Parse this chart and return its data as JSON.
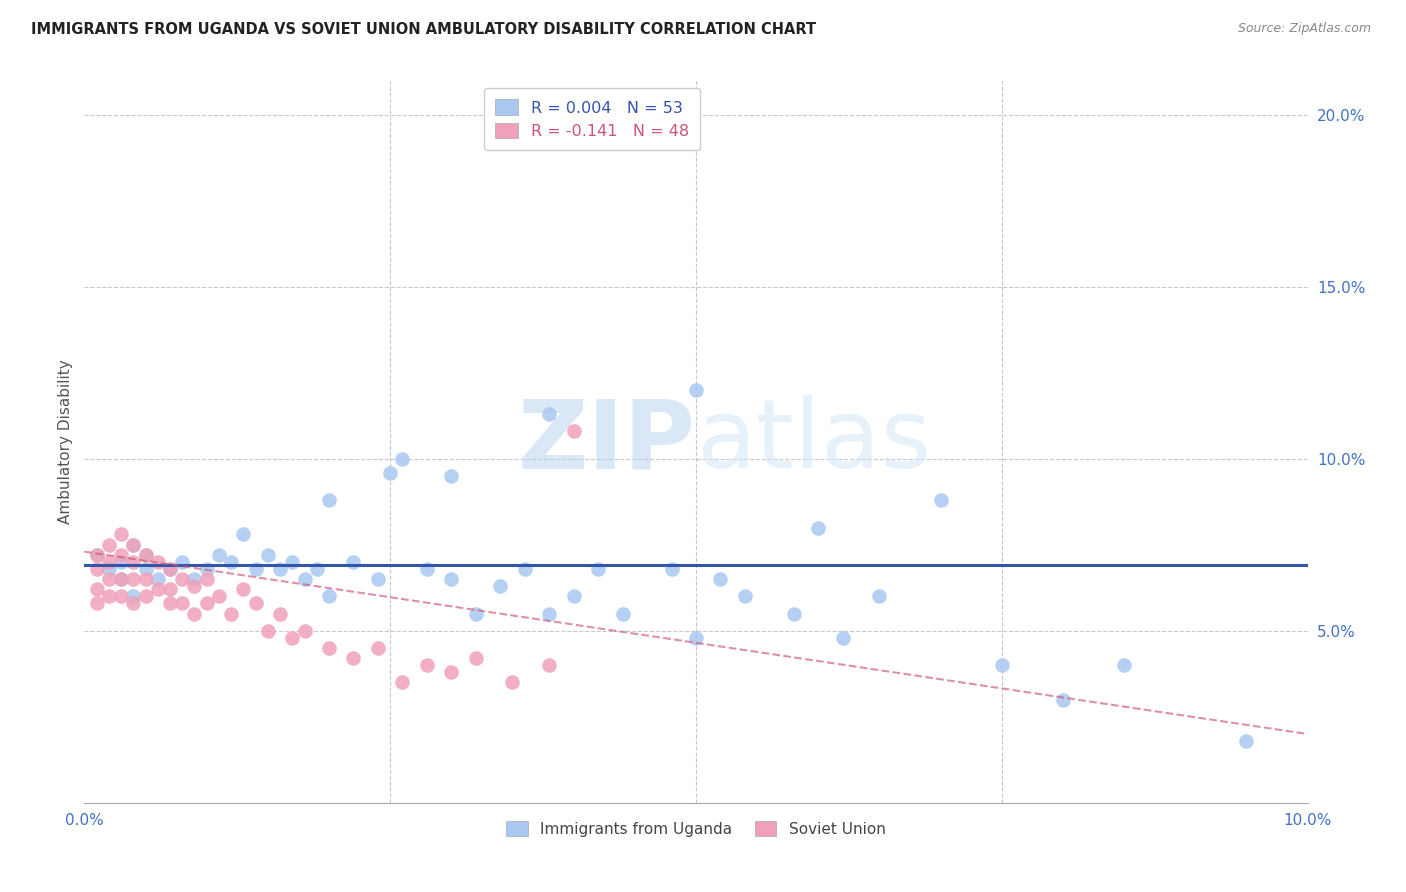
{
  "title": "IMMIGRANTS FROM UGANDA VS SOVIET UNION AMBULATORY DISABILITY CORRELATION CHART",
  "source": "Source: ZipAtlas.com",
  "ylabel": "Ambulatory Disability",
  "xlim": [
    0.0,
    0.1
  ],
  "ylim": [
    0.0,
    0.21
  ],
  "ytick_vals": [
    0.05,
    0.1,
    0.15,
    0.2
  ],
  "ytick_labels": [
    "5.0%",
    "10.0%",
    "15.0%",
    "20.0%"
  ],
  "xtick_vals": [
    0.0,
    0.025,
    0.05,
    0.075,
    0.1
  ],
  "xtick_labels": [
    "0.0%",
    "",
    "",
    "",
    "10.0%"
  ],
  "uganda_R": 0.004,
  "uganda_N": 53,
  "soviet_R": -0.141,
  "soviet_N": 48,
  "uganda_color": "#a8c8f0",
  "soviet_color": "#f0a0b8",
  "uganda_line_color": "#3355aa",
  "soviet_line_color": "#cc5577",
  "background_color": "#ffffff",
  "watermark": "ZIPatlas",
  "grid_color": "#c8c8c8",
  "axis_color": "#4472c4",
  "uganda_x": [
    0.001,
    0.002,
    0.003,
    0.003,
    0.004,
    0.004,
    0.005,
    0.005,
    0.006,
    0.007,
    0.008,
    0.009,
    0.01,
    0.011,
    0.012,
    0.013,
    0.014,
    0.015,
    0.016,
    0.017,
    0.018,
    0.019,
    0.02,
    0.022,
    0.024,
    0.026,
    0.028,
    0.03,
    0.032,
    0.034,
    0.036,
    0.038,
    0.04,
    0.042,
    0.044,
    0.048,
    0.05,
    0.052,
    0.054,
    0.058,
    0.062,
    0.065,
    0.05,
    0.038,
    0.03,
    0.025,
    0.02,
    0.06,
    0.07,
    0.075,
    0.08,
    0.085,
    0.095
  ],
  "uganda_y": [
    0.072,
    0.068,
    0.065,
    0.07,
    0.075,
    0.06,
    0.068,
    0.072,
    0.065,
    0.068,
    0.07,
    0.065,
    0.068,
    0.072,
    0.07,
    0.078,
    0.068,
    0.072,
    0.068,
    0.07,
    0.065,
    0.068,
    0.06,
    0.07,
    0.065,
    0.1,
    0.068,
    0.065,
    0.055,
    0.063,
    0.068,
    0.055,
    0.06,
    0.068,
    0.055,
    0.068,
    0.048,
    0.065,
    0.06,
    0.055,
    0.048,
    0.06,
    0.12,
    0.113,
    0.095,
    0.096,
    0.088,
    0.08,
    0.088,
    0.04,
    0.03,
    0.04,
    0.018
  ],
  "soviet_x": [
    0.001,
    0.001,
    0.001,
    0.001,
    0.002,
    0.002,
    0.002,
    0.002,
    0.003,
    0.003,
    0.003,
    0.003,
    0.004,
    0.004,
    0.004,
    0.004,
    0.005,
    0.005,
    0.005,
    0.006,
    0.006,
    0.007,
    0.007,
    0.007,
    0.008,
    0.008,
    0.009,
    0.009,
    0.01,
    0.01,
    0.011,
    0.012,
    0.013,
    0.014,
    0.015,
    0.016,
    0.017,
    0.018,
    0.02,
    0.022,
    0.024,
    0.026,
    0.028,
    0.03,
    0.032,
    0.035,
    0.038,
    0.04
  ],
  "soviet_y": [
    0.072,
    0.068,
    0.062,
    0.058,
    0.075,
    0.07,
    0.065,
    0.06,
    0.078,
    0.072,
    0.065,
    0.06,
    0.075,
    0.07,
    0.065,
    0.058,
    0.072,
    0.065,
    0.06,
    0.07,
    0.062,
    0.068,
    0.062,
    0.058,
    0.065,
    0.058,
    0.063,
    0.055,
    0.065,
    0.058,
    0.06,
    0.055,
    0.062,
    0.058,
    0.05,
    0.055,
    0.048,
    0.05,
    0.045,
    0.042,
    0.045,
    0.035,
    0.04,
    0.038,
    0.042,
    0.035,
    0.04,
    0.108
  ],
  "uganda_line_y0": 0.069,
  "uganda_line_y1": 0.069,
  "soviet_line_y0": 0.073,
  "soviet_line_y1": 0.02
}
